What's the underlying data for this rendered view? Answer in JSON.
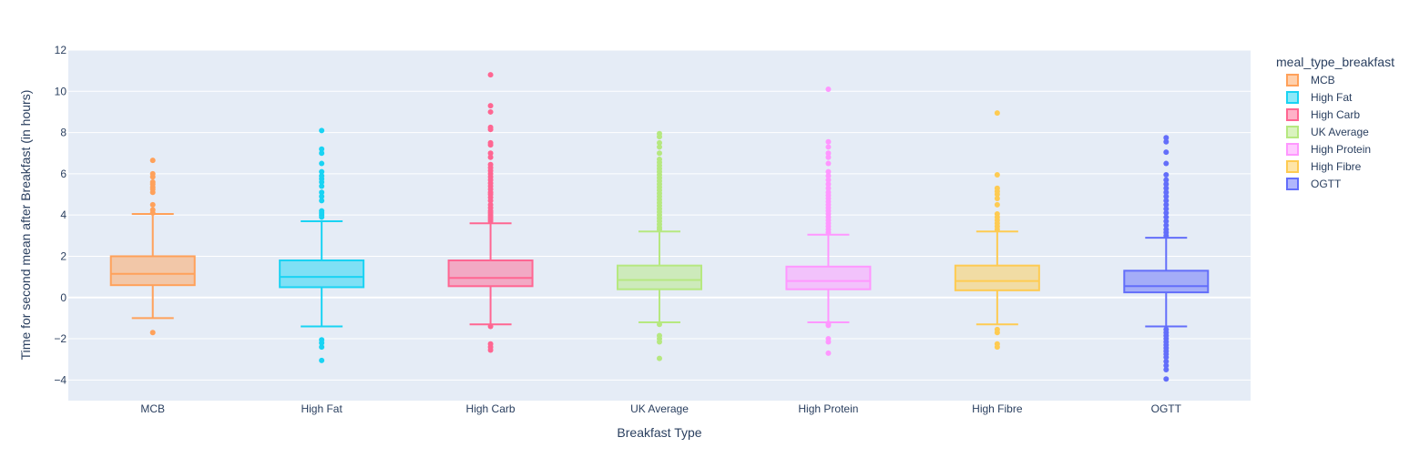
{
  "chart_data": {
    "type": "box",
    "xlabel": "Breakfast Type",
    "ylabel": "Time for second mean after Breakfast (in hours)",
    "ylim": [
      -5,
      12
    ],
    "yticks": [
      -4,
      -2,
      0,
      2,
      4,
      6,
      8,
      10,
      12
    ],
    "grid": true,
    "legend": {
      "title": "meal_type_breakfast",
      "placement": "top-right"
    },
    "categories": [
      "MCB",
      "High Fat",
      "High Carb",
      "UK Average",
      "High Protein",
      "High Fibre",
      "OGTT"
    ],
    "series": [
      {
        "name": "MCB",
        "color": "#FFA15A",
        "q1": 0.6,
        "median": 1.15,
        "q3": 2.0,
        "lower_fence": -1.0,
        "upper_fence": 4.05,
        "outliers": [
          -1.7,
          4.1,
          4.25,
          4.5,
          5.1,
          5.25,
          5.35,
          5.5,
          5.6,
          5.85,
          6.0,
          6.65
        ]
      },
      {
        "name": "High Fat",
        "color": "#19D3F3",
        "q1": 0.5,
        "median": 1.0,
        "q3": 1.8,
        "lower_fence": -1.4,
        "upper_fence": 3.7,
        "outliers": [
          -3.05,
          -2.4,
          -2.2,
          -2.05,
          3.9,
          4.0,
          4.1,
          4.2,
          4.7,
          4.9,
          5.1,
          5.4,
          5.6,
          5.75,
          5.9,
          6.1,
          6.5,
          7.0,
          7.2,
          8.1
        ]
      },
      {
        "name": "High Carb",
        "color": "#FF6692",
        "q1": 0.55,
        "median": 0.95,
        "q3": 1.8,
        "lower_fence": -1.3,
        "upper_fence": 3.6,
        "outliers": [
          -2.55,
          -2.4,
          -2.25,
          -1.4,
          3.7,
          3.8,
          3.9,
          4.0,
          4.1,
          4.2,
          4.35,
          4.5,
          4.7,
          4.85,
          5.0,
          5.1,
          5.25,
          5.4,
          5.55,
          5.7,
          5.85,
          6.0,
          6.15,
          6.3,
          6.45,
          6.8,
          7.0,
          7.4,
          7.5,
          8.15,
          8.25,
          9.0,
          9.3,
          10.8
        ]
      },
      {
        "name": "UK Average",
        "color": "#B6E880",
        "q1": 0.4,
        "median": 0.85,
        "q3": 1.55,
        "lower_fence": -1.2,
        "upper_fence": 3.2,
        "outliers": [
          -2.95,
          -2.15,
          -2.0,
          -1.85,
          -1.3,
          3.3,
          3.4,
          3.55,
          3.7,
          3.85,
          4.0,
          4.15,
          4.3,
          4.45,
          4.6,
          4.75,
          4.9,
          5.05,
          5.2,
          5.35,
          5.5,
          5.65,
          5.8,
          5.95,
          6.1,
          6.25,
          6.4,
          6.55,
          6.7,
          7.0,
          7.3,
          7.5,
          7.8,
          7.95
        ]
      },
      {
        "name": "High Protein",
        "color": "#FF97FF",
        "q1": 0.4,
        "median": 0.8,
        "q3": 1.5,
        "lower_fence": -1.2,
        "upper_fence": 3.05,
        "outliers": [
          -2.7,
          -2.15,
          -2.0,
          -1.35,
          -1.25,
          3.15,
          3.3,
          3.45,
          3.6,
          3.75,
          3.9,
          4.05,
          4.2,
          4.35,
          4.5,
          4.65,
          4.8,
          4.95,
          5.1,
          5.3,
          5.5,
          5.7,
          5.9,
          6.1,
          6.5,
          6.8,
          7.0,
          7.3,
          7.55,
          10.1
        ]
      },
      {
        "name": "High Fibre",
        "color": "#FECB52",
        "q1": 0.35,
        "median": 0.8,
        "q3": 1.55,
        "lower_fence": -1.3,
        "upper_fence": 3.2,
        "outliers": [
          -2.4,
          -2.25,
          -1.7,
          -1.55,
          3.3,
          3.45,
          3.6,
          3.75,
          3.9,
          4.05,
          4.5,
          4.8,
          5.0,
          5.15,
          5.3,
          5.95,
          8.95
        ]
      },
      {
        "name": "OGTT",
        "color": "#636EFA",
        "q1": 0.25,
        "median": 0.55,
        "q3": 1.3,
        "lower_fence": -1.4,
        "upper_fence": 2.9,
        "outliers": [
          -3.95,
          -3.5,
          -3.3,
          -3.1,
          -2.9,
          -2.75,
          -2.6,
          -2.45,
          -2.3,
          -2.15,
          -2.0,
          -1.85,
          -1.7,
          -1.55,
          3.0,
          3.15,
          3.3,
          3.5,
          3.7,
          3.9,
          4.1,
          4.3,
          4.5,
          4.7,
          4.9,
          5.1,
          5.3,
          5.5,
          5.7,
          5.95,
          6.5,
          7.05,
          7.55,
          7.75
        ]
      }
    ]
  }
}
